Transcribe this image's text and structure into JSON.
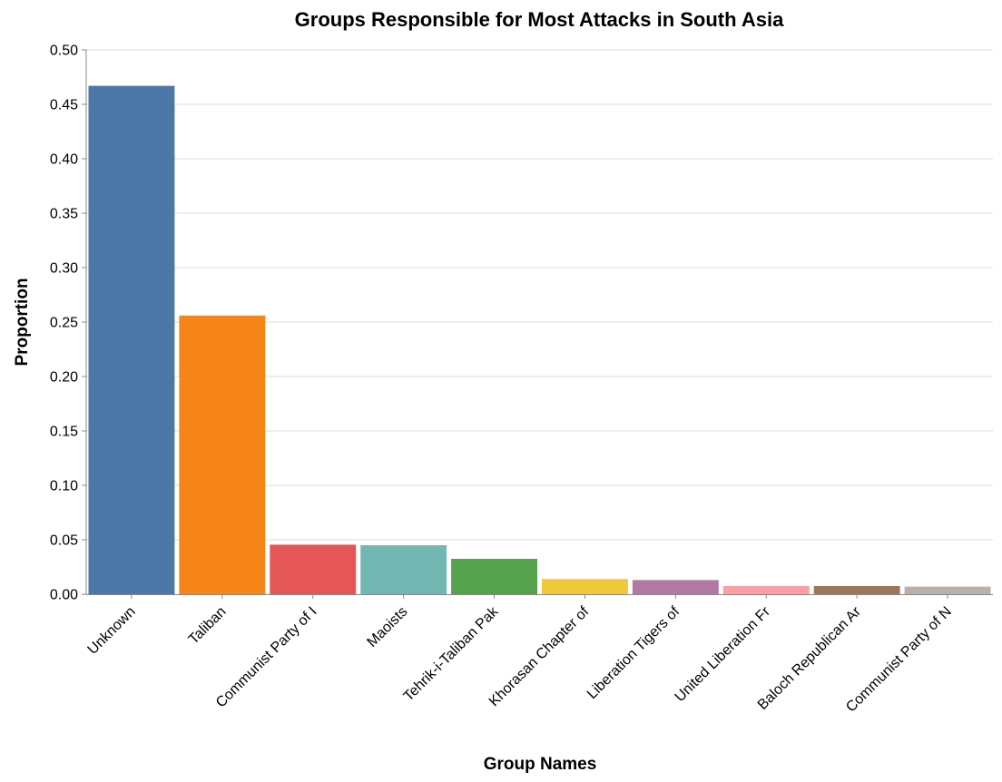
{
  "chart_data": {
    "type": "bar",
    "title": "Groups Responsible for Most Attacks in South Asia",
    "xlabel": "Group Names",
    "ylabel": "Proportion",
    "ylim": [
      0,
      0.5
    ],
    "yticks": [
      "0.00",
      "0.05",
      "0.10",
      "0.15",
      "0.20",
      "0.25",
      "0.30",
      "0.35",
      "0.40",
      "0.45",
      "0.50"
    ],
    "grid": true,
    "categories": [
      "Unknown",
      "Taliban",
      "Communist Party of I",
      "Maoists",
      "Tehrik-i-Taliban Pak",
      "Khorasan Chapter of",
      "Liberation Tigers of",
      "United Liberation Fr",
      "Baloch Republican Ar",
      "Communist Party of N"
    ],
    "values": [
      0.467,
      0.256,
      0.0455,
      0.045,
      0.0325,
      0.014,
      0.013,
      0.0075,
      0.0075,
      0.007
    ],
    "colors": [
      "#4c78a8",
      "#f58518",
      "#e45756",
      "#72b7b2",
      "#54a24b",
      "#eeca3b",
      "#b279a2",
      "#ff9da6",
      "#9d755d",
      "#bab0ac"
    ]
  }
}
